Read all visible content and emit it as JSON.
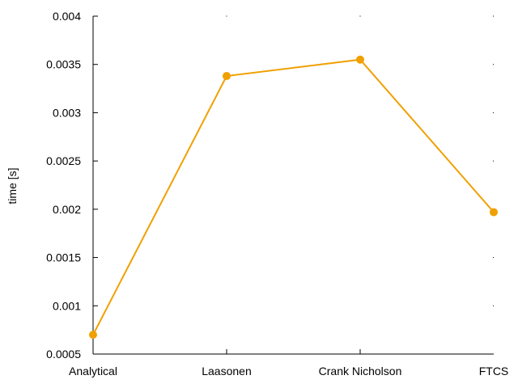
{
  "chart_data": {
    "type": "line",
    "title": "",
    "xlabel": "",
    "ylabel": "time [s]",
    "categories": [
      "Analytical",
      "Laasonen",
      "Crank Nicholson",
      "FTCS"
    ],
    "series": [
      {
        "values": [
          0.0007,
          0.00338,
          0.00355,
          0.00197
        ],
        "color": "#f0a000"
      }
    ],
    "ylim": [
      0.0005,
      0.004
    ],
    "yticks": [
      0.0005,
      0.001,
      0.0015,
      0.002,
      0.0025,
      0.003,
      0.0035,
      0.004
    ],
    "ytick_labels": [
      "0.0005",
      "0.001",
      "0.0015",
      "0.002",
      "0.0025",
      "0.003",
      "0.0035",
      "0.004"
    ],
    "grid": false,
    "legend": "none"
  }
}
